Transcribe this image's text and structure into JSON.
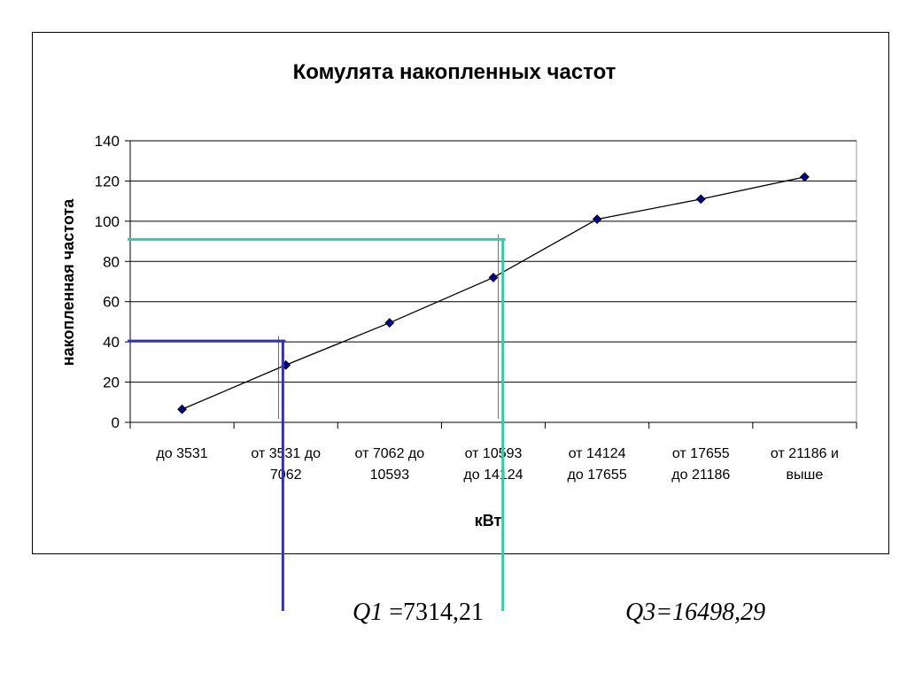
{
  "chart_data": {
    "type": "line",
    "title": "Комулята накопленных частот",
    "xlabel": "кВт",
    "ylabel": "накопленная частота",
    "ylim": [
      0,
      140
    ],
    "yticks": [
      0,
      20,
      40,
      60,
      80,
      100,
      120,
      140
    ],
    "grid": true,
    "categories": [
      [
        "до 3531"
      ],
      [
        "от 3531 до",
        "7062"
      ],
      [
        "от 7062 до",
        "10593"
      ],
      [
        "от 10593",
        "до 14124"
      ],
      [
        "от 14124",
        "до 17655"
      ],
      [
        "от 17655",
        "до 21186"
      ],
      [
        "от 21186 и",
        "выше"
      ]
    ],
    "series": [
      {
        "values": [
          6.5,
          28.5,
          49.5,
          72,
          101,
          111,
          122
        ],
        "color": "#000080"
      }
    ],
    "annotations": [
      {
        "label": "Q1",
        "value": "=7314,21",
        "y": 40,
        "x_category": 1.48,
        "color": "#3333aa"
      },
      {
        "label": "Q3",
        "value": "=16498,29",
        "y": 90.5,
        "x_category": 3.6,
        "color": "#33ccaa"
      }
    ]
  }
}
